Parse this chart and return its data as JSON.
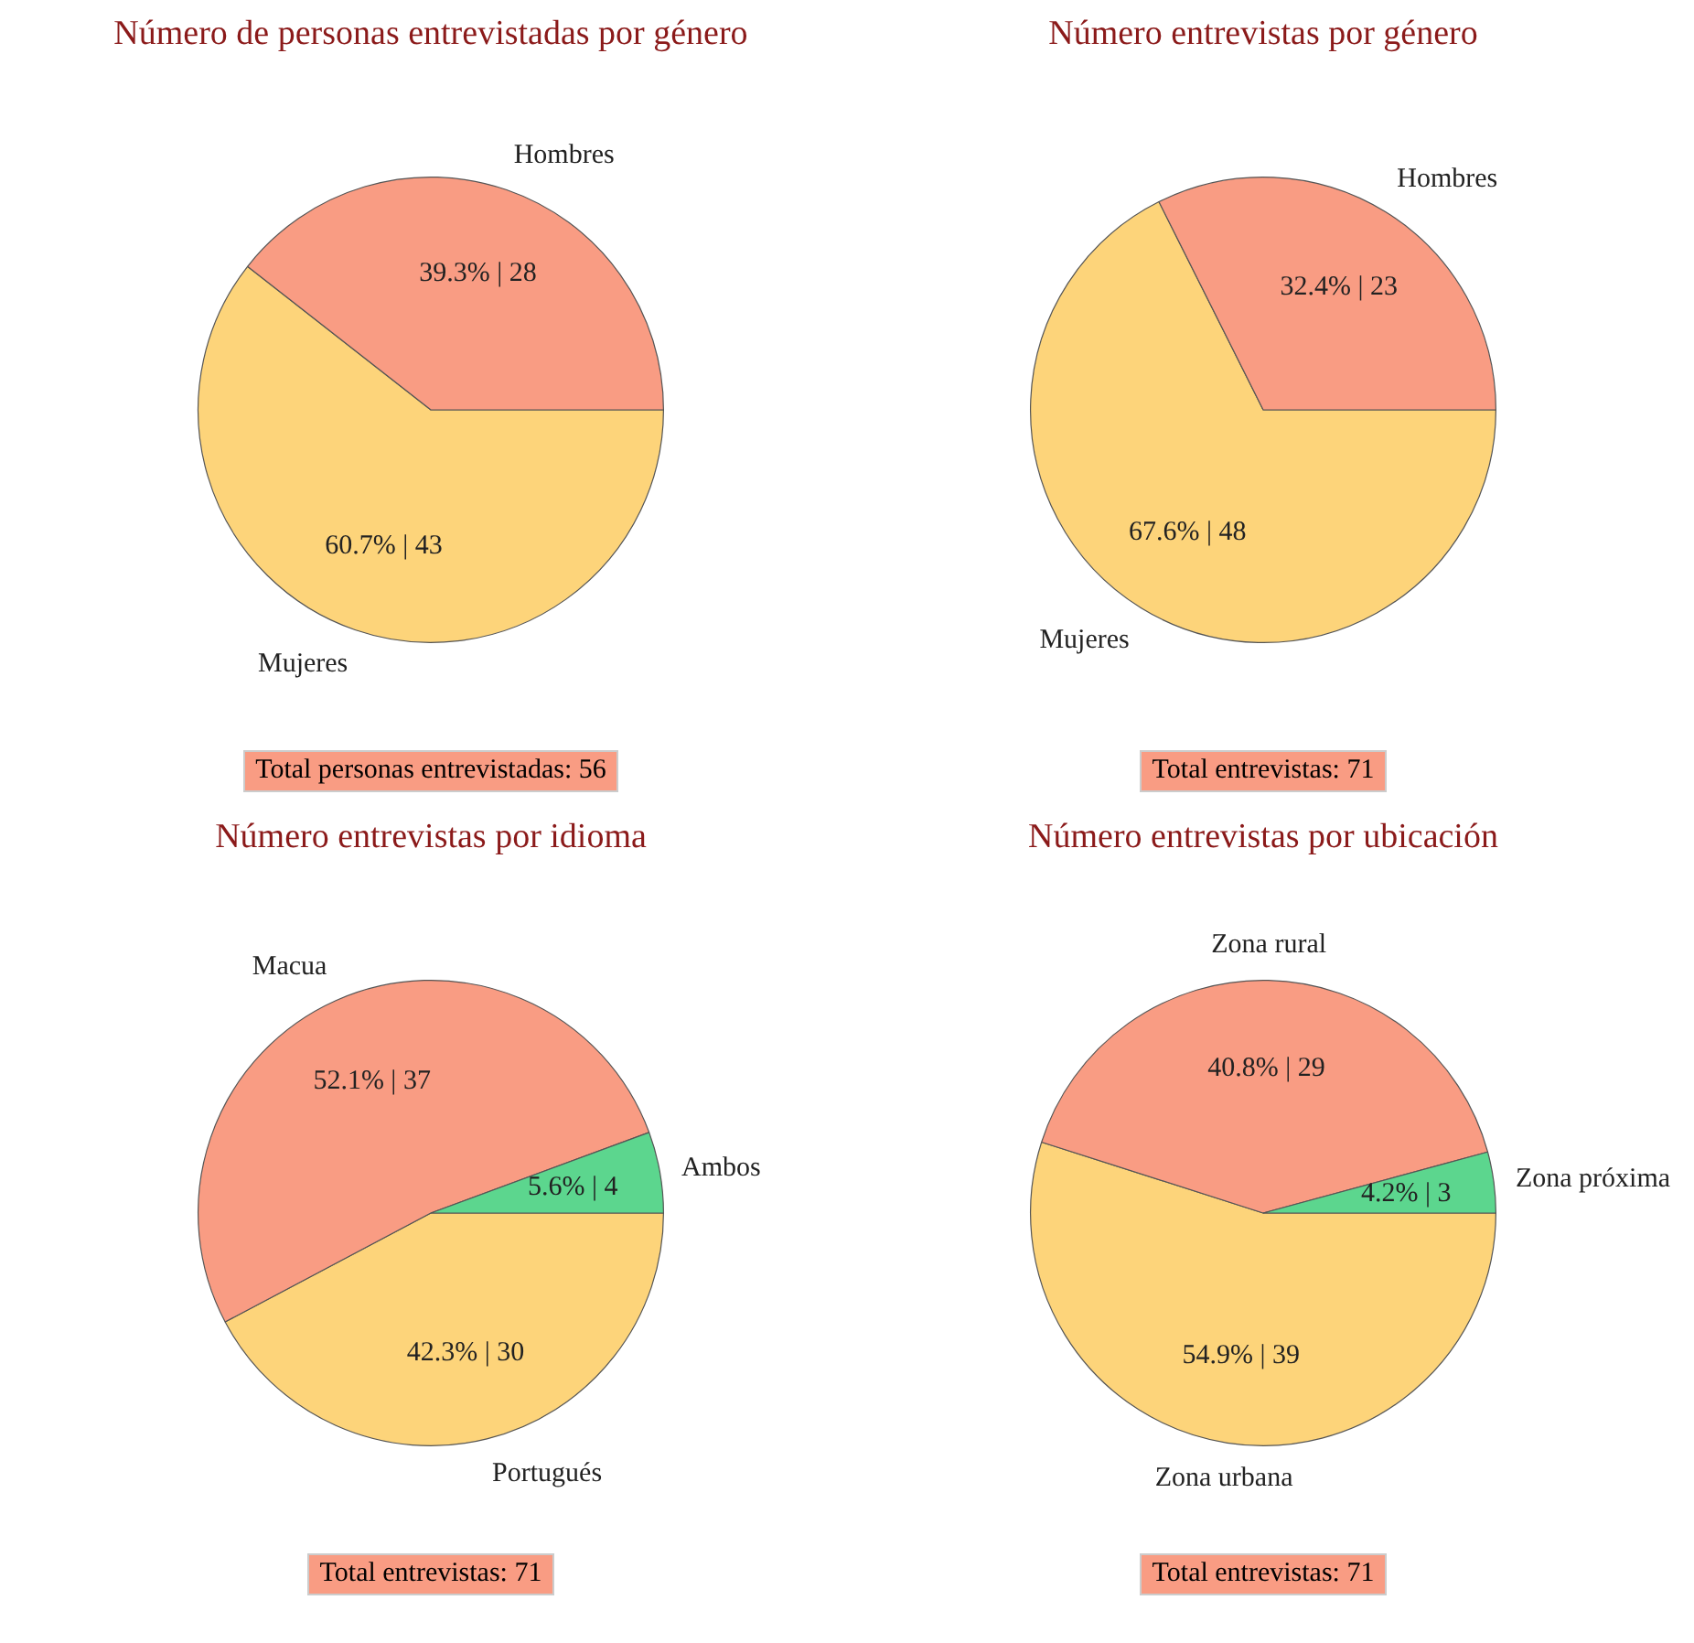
{
  "chart_data": [
    {
      "type": "pie",
      "title": "Número de personas entrevistadas por género",
      "categories": [
        "Mujeres",
        "Hombres"
      ],
      "values": [
        43,
        28
      ],
      "value_labels": [
        "60.7% | 43",
        "39.3% | 28"
      ],
      "colors": [
        "#fdd47a",
        "#f99c83"
      ],
      "annotations": [
        "Total personas entrevistadas: 56"
      ],
      "legend": false
    },
    {
      "type": "pie",
      "title": "Número entrevistas por género",
      "categories": [
        "Mujeres",
        "Hombres"
      ],
      "values": [
        48,
        23
      ],
      "value_labels": [
        "67.6% | 48",
        "32.4% | 23"
      ],
      "colors": [
        "#fdd47a",
        "#f99c83"
      ],
      "annotations": [
        "Total entrevistas: 71"
      ],
      "legend": false
    },
    {
      "type": "pie",
      "title": "Número entrevistas por idioma",
      "categories": [
        "Portugués",
        "Macua",
        "Ambos"
      ],
      "values": [
        30,
        37,
        4
      ],
      "value_labels": [
        "42.3% | 30",
        "52.1% | 37",
        "5.6% | 4"
      ],
      "colors": [
        "#fdd47a",
        "#f99c83",
        "#5cd68e"
      ],
      "annotations": [
        "Total entrevistas: 71"
      ],
      "legend": false
    },
    {
      "type": "pie",
      "title": "Número entrevistas por ubicación",
      "categories": [
        "Zona urbana",
        "Zona rural",
        "Zona próxima"
      ],
      "values": [
        39,
        29,
        3
      ],
      "value_labels": [
        "54.9% | 39",
        "40.8% | 29",
        "4.2% | 3"
      ],
      "colors": [
        "#fdd47a",
        "#f99c83",
        "#5cd68e"
      ],
      "annotations": [
        "Total entrevistas: 71"
      ],
      "legend": false
    }
  ]
}
